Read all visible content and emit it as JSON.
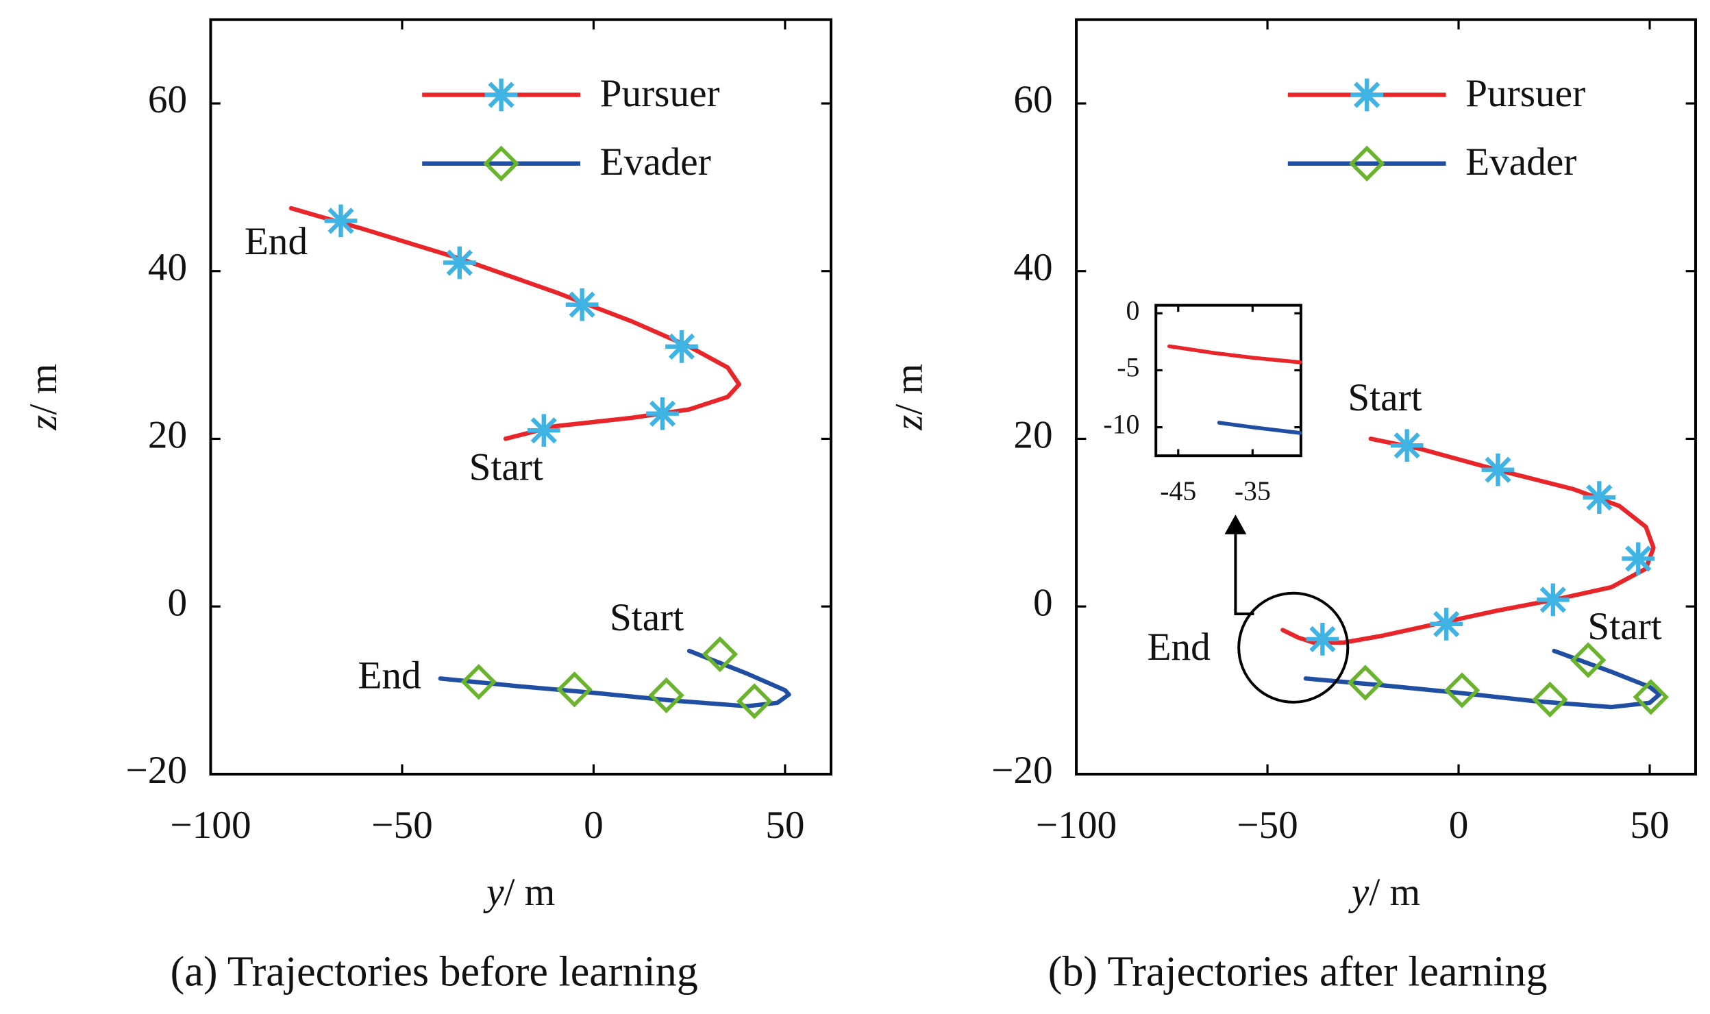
{
  "chart_data": [
    {
      "type": "line",
      "caption": "(a)  Trajectories before learning",
      "xlabel_symbol": "y",
      "xlabel_unit": "/ m",
      "ylabel_symbol": "z",
      "ylabel_unit": "/ m",
      "xlim": [
        -100,
        62
      ],
      "ylim": [
        -20,
        70
      ],
      "xticks": [
        {
          "value": -100,
          "label": "−100"
        },
        {
          "value": -50,
          "label": "−50"
        },
        0,
        50
      ],
      "yticks": [
        {
          "value": -20,
          "label": "−20"
        },
        0,
        20,
        40,
        60
      ],
      "legend": "top-right",
      "annotations": [
        "End",
        "Start",
        "Start",
        "End"
      ],
      "series": [
        {
          "name": "Pursuer",
          "color": "#e8262a",
          "marker": "asterisk",
          "marker_color": "#3fb4e4",
          "x": [
            -23,
            -10,
            10,
            25,
            35,
            38,
            35,
            25,
            10,
            -10,
            -35,
            -60,
            -79
          ],
          "values": [
            20,
            21.5,
            22.5,
            23.5,
            25,
            26.5,
            28.5,
            31,
            34,
            37.5,
            41.5,
            45,
            47.5
          ],
          "marker_x": [
            -13,
            18,
            23,
            -3,
            -35,
            -66
          ],
          "marker_values": [
            21,
            23,
            31,
            36,
            41,
            46
          ]
        },
        {
          "name": "Evader",
          "color": "#1f4ea3",
          "marker": "diamond",
          "marker_color": "#6ab42d",
          "x": [
            25,
            40,
            50,
            51,
            48,
            40,
            20,
            0,
            -20,
            -40
          ],
          "values": [
            -5.3,
            -8,
            -10,
            -10.5,
            -11.5,
            -11.9,
            -11.2,
            -10.3,
            -9.5,
            -8.6
          ],
          "marker_x": [
            33,
            42,
            19,
            -5,
            -30
          ],
          "marker_values": [
            -5.7,
            -11.3,
            -10.6,
            -9.9,
            -9
          ]
        }
      ]
    },
    {
      "type": "line",
      "caption": "(b)  Trajectories after learning",
      "xlabel_symbol": "y",
      "xlabel_unit": "/ m",
      "ylabel_symbol": "z",
      "ylabel_unit": "/ m",
      "xlim": [
        -100,
        62
      ],
      "ylim": [
        -20,
        70
      ],
      "xticks": [
        {
          "value": -100,
          "label": "−100"
        },
        {
          "value": -50,
          "label": "−50"
        },
        0,
        50
      ],
      "yticks": [
        {
          "value": -20,
          "label": "−20"
        },
        0,
        20,
        40,
        60
      ],
      "legend": "top-right",
      "annotations": [
        "Start",
        "End",
        "Start"
      ],
      "series": [
        {
          "name": "Pursuer",
          "color": "#e8262a",
          "marker": "asterisk",
          "marker_color": "#3fb4e4",
          "x": [
            -23,
            -10,
            10,
            30,
            42,
            49,
            51,
            49,
            40,
            25,
            10,
            -5,
            -20,
            -30,
            -38,
            -42,
            -46
          ],
          "values": [
            20,
            18.8,
            16.3,
            14,
            12,
            9.5,
            7,
            4.5,
            2.3,
            0.8,
            -0.5,
            -2,
            -3.5,
            -4.3,
            -4.3,
            -3.7,
            -2.8
          ],
          "marker_x": [
            -13.5,
            10.3,
            36.8,
            47,
            24.7,
            -3.2,
            -35.6
          ],
          "marker_values": [
            19.2,
            16.3,
            13,
            5.7,
            0.8,
            -2.1,
            -3.9
          ]
        },
        {
          "name": "Evader",
          "color": "#1f4ea3",
          "marker": "diamond",
          "marker_color": "#6ab42d",
          "x": [
            25,
            40,
            50,
            52.5,
            50,
            40,
            20,
            0,
            -20,
            -40
          ],
          "values": [
            -5.3,
            -7.8,
            -9.6,
            -10.5,
            -11.5,
            -12,
            -11.3,
            -10.3,
            -9.4,
            -8.6
          ],
          "marker_x": [
            33.9,
            50.3,
            23.9,
            0.9,
            -24.4
          ],
          "marker_values": [
            -6.4,
            -10.8,
            -11.1,
            -10,
            -9.1
          ]
        }
      ],
      "inset": {
        "type": "line",
        "xlim": [
          -48,
          -28.5
        ],
        "ylim": [
          -12.5,
          0.7
        ],
        "xticks": [
          -45,
          -35
        ],
        "yticks": [
          0,
          -5,
          -10
        ],
        "series": [
          {
            "color": "#e8262a",
            "x": [
              -46.2,
              -40,
              -35,
              -28.6
            ],
            "values": [
              -2.9,
              -3.5,
              -3.9,
              -4.3
            ]
          },
          {
            "color": "#1f4ea3",
            "x": [
              -39.5,
              -35,
              -28.6
            ],
            "values": [
              -9.6,
              -10,
              -10.5
            ]
          }
        ]
      }
    }
  ]
}
